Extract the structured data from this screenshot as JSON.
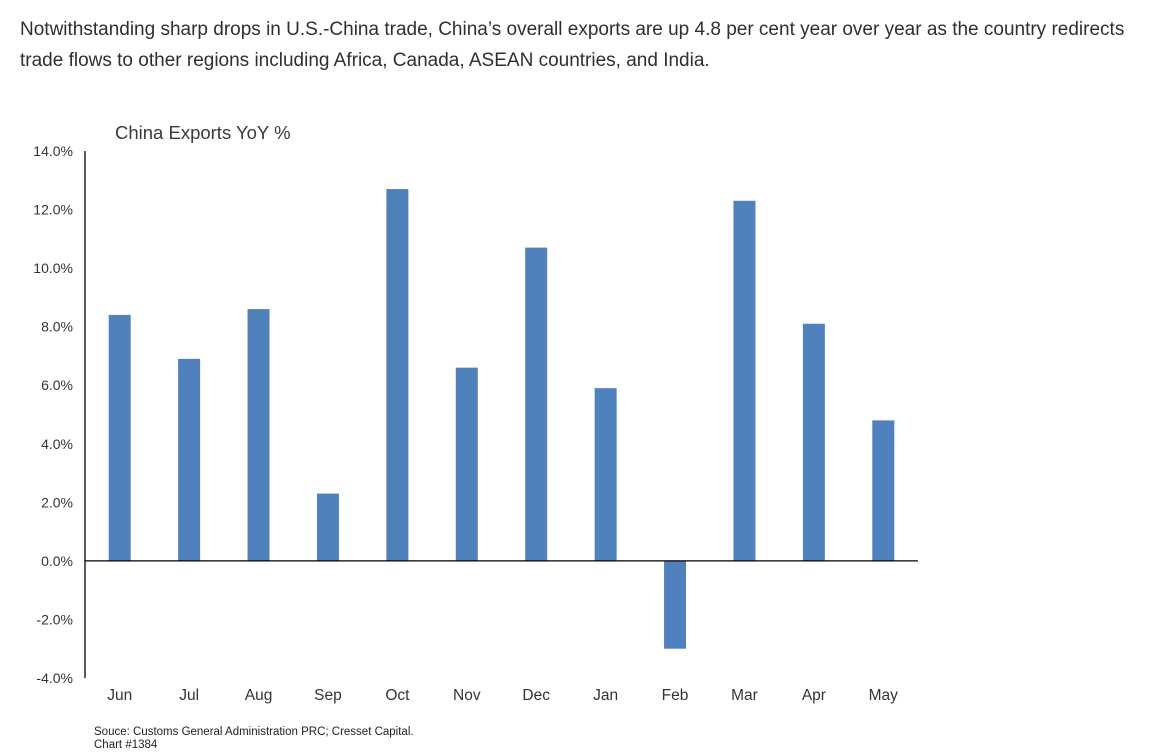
{
  "intro_text": "Notwithstanding sharp drops in U.S.-China trade, China’s overall exports are up 4.8 per cent year over year as the country redirects trade flows to other regions including Africa, Canada, ASEAN countries, and India.",
  "chart_data": {
    "type": "bar",
    "title": "China Exports YoY %",
    "xlabel": "",
    "ylabel": "",
    "categories": [
      "Jun",
      "Jul",
      "Aug",
      "Sep",
      "Oct",
      "Nov",
      "Dec",
      "Jan",
      "Feb",
      "Mar",
      "Apr",
      "May"
    ],
    "values": [
      8.4,
      6.9,
      8.6,
      2.3,
      12.7,
      6.6,
      10.7,
      5.9,
      -3.0,
      12.3,
      8.1,
      4.8
    ],
    "ylim": [
      -4.0,
      14.0
    ],
    "yticks": [
      "14.0%",
      "12.0%",
      "10.0%",
      "8.0%",
      "6.0%",
      "4.0%",
      "2.0%",
      "0.0%",
      "-2.0%",
      "-4.0%"
    ],
    "ytick_values": [
      14,
      12,
      10,
      8,
      6,
      4,
      2,
      0,
      -2,
      -4
    ],
    "grid": false,
    "legend": "none",
    "bar_color": "#4f81bd"
  },
  "source": {
    "line1": "Souce: Customs General Administration PRC; Cresset Capital.",
    "line2": "Chart #1384"
  }
}
